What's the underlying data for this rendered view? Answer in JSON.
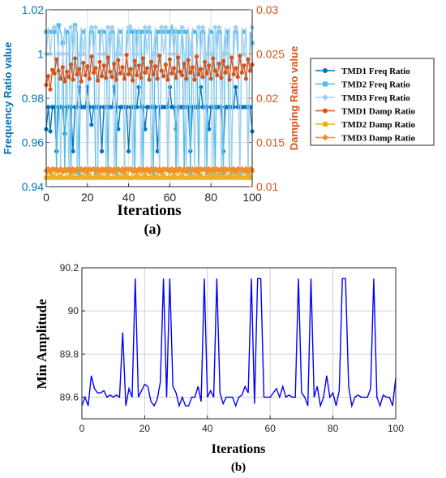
{
  "panel_a": {
    "caption": "(a)",
    "xlabel": "Iterations",
    "ylabel_left": "Frequency Ratio value",
    "ylabel_right": "Damping Ratio value",
    "legend": [
      "TMD1 Freq Ratio",
      "TMD2 Freq Ratio",
      "TMD3 Freq Ratio",
      "TMD1 Damp Ratio",
      "TMD2 Damp Ratio",
      "TMD3 Damp Ratio"
    ]
  },
  "panel_b": {
    "caption": "(b)",
    "xlabel": "Iterations",
    "ylabel": "Min Amplitude"
  },
  "chart_data": [
    {
      "type": "line",
      "panel": "(a)",
      "title": "",
      "xlabel": "Iterations",
      "ylabel": "Frequency Ratio value",
      "y2label": "Damping Ratio value",
      "xlim": [
        0,
        100
      ],
      "ylim": [
        0.94,
        1.02
      ],
      "y2lim": [
        0.01,
        0.03
      ],
      "xticks": [
        0,
        20,
        40,
        60,
        80,
        100
      ],
      "yticks": [
        0.94,
        0.96,
        0.98,
        1,
        1.02
      ],
      "y2ticks": [
        0.01,
        0.015,
        0.02,
        0.025,
        0.03
      ],
      "grid": true,
      "legend_position": "right-outside",
      "colors": {
        "left_axis": "#0072BD",
        "right_axis": "#D95319",
        "TMD1 Freq Ratio": "#0072BD",
        "TMD2 Freq Ratio": "#4DBEEE",
        "TMD3 Freq Ratio": "#a6cfee",
        "TMD1 Damp Ratio": "#D95319",
        "TMD2 Damp Ratio": "#EDB120",
        "TMD3 Damp Ratio": "#F28E2B"
      },
      "x": [
        0,
        1,
        2,
        3,
        4,
        5,
        6,
        7,
        8,
        9,
        10,
        11,
        12,
        13,
        14,
        15,
        16,
        17,
        18,
        19,
        20,
        21,
        22,
        23,
        24,
        25,
        26,
        27,
        28,
        29,
        30,
        31,
        32,
        33,
        34,
        35,
        36,
        37,
        38,
        39,
        40,
        41,
        42,
        43,
        44,
        45,
        46,
        47,
        48,
        49,
        50,
        51,
        52,
        53,
        54,
        55,
        56,
        57,
        58,
        59,
        60,
        61,
        62,
        63,
        64,
        65,
        66,
        67,
        68,
        69,
        70,
        71,
        72,
        73,
        74,
        75,
        76,
        77,
        78,
        79,
        80,
        81,
        82,
        83,
        84,
        85,
        86,
        87,
        88,
        89,
        90,
        91,
        92,
        93,
        94,
        95,
        96,
        97,
        98,
        99,
        100
      ],
      "series": [
        {
          "name": "TMD1 Freq Ratio",
          "axis": "left",
          "marker": "circle",
          "values": [
            0.966,
            0.976,
            0.965,
            0.976,
            0.976,
            0.956,
            0.976,
            0.976,
            0.976,
            0.964,
            0.976,
            0.976,
            0.976,
            0.956,
            0.976,
            0.976,
            0.985,
            0.976,
            0.976,
            0.976,
            0.985,
            0.976,
            0.968,
            0.976,
            0.976,
            0.976,
            0.976,
            0.956,
            0.976,
            0.976,
            0.976,
            0.976,
            0.976,
            0.985,
            0.976,
            0.966,
            0.976,
            0.976,
            0.976,
            0.976,
            0.956,
            0.976,
            0.976,
            0.976,
            0.976,
            0.985,
            0.976,
            0.976,
            0.966,
            0.976,
            0.976,
            0.976,
            0.976,
            0.976,
            0.956,
            0.976,
            0.976,
            0.976,
            0.976,
            0.976,
            0.985,
            0.976,
            0.976,
            0.966,
            0.976,
            0.976,
            0.976,
            0.976,
            0.976,
            0.976,
            0.956,
            0.976,
            0.976,
            0.976,
            0.976,
            0.985,
            0.976,
            0.976,
            0.976,
            0.966,
            0.976,
            0.976,
            0.976,
            0.976,
            0.976,
            0.976,
            0.956,
            0.976,
            0.976,
            0.976,
            0.976,
            0.976,
            0.985,
            0.976,
            0.976,
            0.976,
            0.976,
            0.976,
            0.976,
            0.976,
            0.965
          ]
        },
        {
          "name": "TMD2 Freq Ratio",
          "axis": "left",
          "marker": "square",
          "values": [
            1.01,
            1.01,
            1.01,
            1.01,
            1.01,
            0.946,
            1.013,
            1.01,
            1.005,
            0.946,
            1.01,
            1.01,
            0.946,
            1.01,
            1.013,
            1.01,
            0.946,
            1.01,
            1.01,
            1.01,
            0.946,
            1.01,
            1.01,
            1.01,
            0.946,
            0.946,
            1.01,
            1.01,
            1.01,
            1.01,
            0.946,
            1.01,
            1.01,
            1.01,
            0.946,
            1.01,
            1.01,
            1.01,
            0.946,
            1.01,
            1.01,
            1.013,
            1.01,
            0.946,
            1.01,
            1.01,
            1.01,
            0.946,
            1.01,
            1.01,
            1.01,
            1.01,
            0.946,
            1.01,
            1.01,
            0.946,
            1.01,
            1.01,
            1.01,
            0.946,
            1.01,
            1.013,
            1.01,
            0.946,
            1.01,
            1.01,
            1.01,
            0.946,
            1.01,
            1.01,
            0.946,
            1.01,
            1.01,
            1.01,
            0.946,
            1.01,
            1.01,
            1.01,
            0.946,
            1.01,
            1.01,
            1.01,
            0.946,
            1.01,
            1.01,
            1.01,
            0.946,
            1.01,
            1.01,
            0.946,
            0.946,
            1.01,
            1.01,
            1.01,
            0.946,
            1.01,
            1.01,
            1.01,
            0.946,
            1.01,
            1.005
          ]
        },
        {
          "name": "TMD3 Freq Ratio",
          "axis": "left",
          "marker": "diamond",
          "values": [
            1.0,
            1.012,
            1.0,
            1.012,
            1.012,
            1.012,
            1.0,
            0.947,
            1.0,
            1.012,
            1.0,
            0.947,
            1.012,
            1.0,
            1.012,
            0.947,
            1.0,
            1.012,
            1.0,
            1.012,
            0.947,
            1.0,
            1.012,
            1.0,
            1.012,
            0.947,
            1.0,
            1.012,
            1.0,
            0.947,
            1.012,
            1.0,
            1.012,
            0.947,
            1.0,
            1.012,
            1.0,
            1.012,
            0.947,
            1.0,
            1.012,
            1.0,
            0.947,
            1.012,
            1.0,
            1.012,
            0.947,
            1.0,
            1.012,
            1.0,
            1.012,
            0.947,
            1.0,
            1.012,
            1.0,
            0.947,
            1.012,
            1.0,
            1.012,
            0.947,
            1.0,
            1.012,
            1.0,
            1.012,
            0.947,
            1.0,
            1.012,
            1.0,
            0.947,
            1.012,
            1.0,
            1.012,
            0.947,
            1.0,
            1.012,
            1.0,
            1.012,
            0.947,
            1.0,
            1.012,
            1.0,
            0.947,
            1.012,
            1.0,
            1.012,
            0.947,
            1.0,
            1.012,
            1.0,
            1.012,
            0.947,
            1.0,
            1.012,
            1.0,
            0.947,
            1.012,
            1.0,
            1.012,
            0.947,
            1.0,
            1.012
          ]
        },
        {
          "name": "TMD1 Damp Ratio",
          "axis": "right",
          "marker": "circle",
          "values": [
            0.0215,
            0.0225,
            0.021,
            0.0232,
            0.0228,
            0.0244,
            0.0231,
            0.0222,
            0.0235,
            0.0219,
            0.023,
            0.0224,
            0.0238,
            0.0221,
            0.0245,
            0.0227,
            0.0233,
            0.0219,
            0.024,
            0.0226,
            0.0236,
            0.0222,
            0.0247,
            0.0229,
            0.0234,
            0.022,
            0.0241,
            0.0225,
            0.0237,
            0.0223,
            0.0246,
            0.023,
            0.0224,
            0.0239,
            0.0221,
            0.0243,
            0.0228,
            0.0235,
            0.0222,
            0.0249,
            0.0227,
            0.0233,
            0.022,
            0.0242,
            0.0226,
            0.0237,
            0.0223,
            0.0245,
            0.0229,
            0.0234,
            0.0221,
            0.0241,
            0.0227,
            0.0236,
            0.0222,
            0.0248,
            0.0231,
            0.0225,
            0.0238,
            0.0221,
            0.0244,
            0.0228,
            0.0234,
            0.0223,
            0.0246,
            0.023,
            0.0226,
            0.0239,
            0.0222,
            0.0243,
            0.0229,
            0.0235,
            0.0221,
            0.0247,
            0.0227,
            0.0233,
            0.0224,
            0.0241,
            0.0228,
            0.0237,
            0.0222,
            0.0245,
            0.0231,
            0.0226,
            0.0239,
            0.0223,
            0.0242,
            0.0229,
            0.0235,
            0.0221,
            0.0246,
            0.0227,
            0.0234,
            0.0224,
            0.0248,
            0.0229,
            0.0237,
            0.0222,
            0.0244,
            0.0231,
            0.0238
          ]
        },
        {
          "name": "TMD2 Damp Ratio",
          "axis": "right",
          "marker": "square",
          "values": [
            0.011,
            0.0118,
            0.011,
            0.0113,
            0.011,
            0.0118,
            0.011,
            0.0112,
            0.011,
            0.011,
            0.0118,
            0.011,
            0.0113,
            0.011,
            0.0118,
            0.011,
            0.011,
            0.0112,
            0.011,
            0.0118,
            0.011,
            0.0113,
            0.011,
            0.011,
            0.0118,
            0.011,
            0.0112,
            0.011,
            0.0118,
            0.011,
            0.0113,
            0.011,
            0.011,
            0.0118,
            0.011,
            0.0112,
            0.011,
            0.0118,
            0.011,
            0.0113,
            0.011,
            0.011,
            0.0118,
            0.011,
            0.0112,
            0.011,
            0.0118,
            0.011,
            0.0113,
            0.011,
            0.011,
            0.0118,
            0.011,
            0.0112,
            0.011,
            0.0118,
            0.011,
            0.0113,
            0.011,
            0.011,
            0.0118,
            0.011,
            0.0112,
            0.011,
            0.0118,
            0.011,
            0.0113,
            0.011,
            0.011,
            0.0118,
            0.011,
            0.0112,
            0.011,
            0.0118,
            0.011,
            0.0113,
            0.011,
            0.011,
            0.0118,
            0.011,
            0.0112,
            0.011,
            0.0118,
            0.011,
            0.0113,
            0.011,
            0.011,
            0.0118,
            0.011,
            0.0112,
            0.011,
            0.0118,
            0.011,
            0.0113,
            0.011,
            0.011,
            0.0118,
            0.011,
            0.0112,
            0.011,
            0.0118
          ]
        },
        {
          "name": "TMD3 Damp Ratio",
          "axis": "right",
          "marker": "diamond",
          "values": [
            0.0118,
            0.012,
            0.0117,
            0.012,
            0.0119,
            0.012,
            0.0118,
            0.012,
            0.0117,
            0.012,
            0.0119,
            0.012,
            0.0118,
            0.012,
            0.0117,
            0.012,
            0.0119,
            0.012,
            0.0118,
            0.012,
            0.0117,
            0.012,
            0.0119,
            0.012,
            0.0118,
            0.012,
            0.0117,
            0.012,
            0.0119,
            0.012,
            0.0118,
            0.012,
            0.0117,
            0.012,
            0.0119,
            0.012,
            0.0118,
            0.012,
            0.0117,
            0.012,
            0.0119,
            0.012,
            0.0118,
            0.012,
            0.0117,
            0.012,
            0.0119,
            0.012,
            0.0118,
            0.012,
            0.0117,
            0.012,
            0.0119,
            0.012,
            0.0118,
            0.012,
            0.0117,
            0.012,
            0.0119,
            0.012,
            0.0118,
            0.012,
            0.0117,
            0.012,
            0.0119,
            0.012,
            0.0118,
            0.012,
            0.0117,
            0.012,
            0.0119,
            0.012,
            0.0118,
            0.012,
            0.0117,
            0.012,
            0.0119,
            0.012,
            0.0118,
            0.012,
            0.0117,
            0.012,
            0.0119,
            0.012,
            0.0118,
            0.012,
            0.0117,
            0.012,
            0.0119,
            0.012,
            0.0118,
            0.012,
            0.0117,
            0.012,
            0.0119,
            0.012,
            0.0118,
            0.012,
            0.0117,
            0.012,
            0.0119
          ]
        }
      ]
    },
    {
      "type": "line",
      "panel": "(b)",
      "title": "",
      "xlabel": "Iterations",
      "ylabel": "Min Amplitude",
      "xlim": [
        0,
        100
      ],
      "ylim": [
        89.5,
        90.2
      ],
      "xticks": [
        0,
        20,
        40,
        60,
        80,
        100
      ],
      "yticks": [
        89.6,
        89.8,
        90,
        90.2
      ],
      "grid": true,
      "colors": {
        "line": "#0000ff"
      },
      "x": [
        0,
        1,
        2,
        3,
        4,
        5,
        6,
        7,
        8,
        9,
        10,
        11,
        12,
        13,
        14,
        15,
        16,
        17,
        18,
        19,
        20,
        21,
        22,
        23,
        24,
        25,
        26,
        27,
        28,
        29,
        30,
        31,
        32,
        33,
        34,
        35,
        36,
        37,
        38,
        39,
        40,
        41,
        42,
        43,
        44,
        45,
        46,
        47,
        48,
        49,
        50,
        51,
        52,
        53,
        54,
        55,
        56,
        57,
        58,
        59,
        60,
        61,
        62,
        63,
        64,
        65,
        66,
        67,
        68,
        69,
        70,
        71,
        72,
        73,
        74,
        75,
        76,
        77,
        78,
        79,
        80,
        81,
        82,
        83,
        84,
        85,
        86,
        87,
        88,
        89,
        90,
        91,
        92,
        93,
        94,
        95,
        96,
        97,
        98,
        99,
        100
      ],
      "series": [
        {
          "values": [
            89.56,
            89.6,
            89.56,
            89.7,
            89.64,
            89.62,
            89.62,
            89.63,
            89.6,
            89.61,
            89.6,
            89.61,
            89.6,
            89.9,
            89.56,
            89.64,
            89.6,
            90.15,
            89.6,
            89.63,
            89.66,
            89.65,
            89.58,
            89.56,
            89.59,
            89.67,
            90.15,
            89.6,
            90.15,
            89.65,
            89.62,
            89.56,
            89.6,
            89.56,
            89.56,
            89.6,
            89.6,
            89.65,
            89.58,
            90.15,
            89.6,
            89.63,
            89.6,
            90.15,
            89.62,
            89.57,
            89.6,
            89.6,
            89.6,
            89.56,
            89.6,
            89.61,
            89.65,
            89.62,
            90.15,
            89.57,
            90.15,
            90.15,
            89.6,
            89.6,
            89.6,
            89.62,
            89.64,
            89.6,
            89.65,
            89.6,
            89.61,
            89.6,
            89.6,
            90.15,
            89.62,
            89.6,
            89.56,
            90.15,
            89.6,
            89.65,
            89.56,
            89.6,
            89.7,
            89.6,
            89.62,
            89.56,
            89.63,
            90.15,
            90.15,
            89.65,
            89.56,
            89.6,
            89.61,
            89.6,
            89.6,
            89.6,
            89.64,
            90.15,
            89.6,
            89.56,
            89.61,
            89.6,
            89.6,
            89.56,
            89.69
          ]
        }
      ]
    }
  ]
}
